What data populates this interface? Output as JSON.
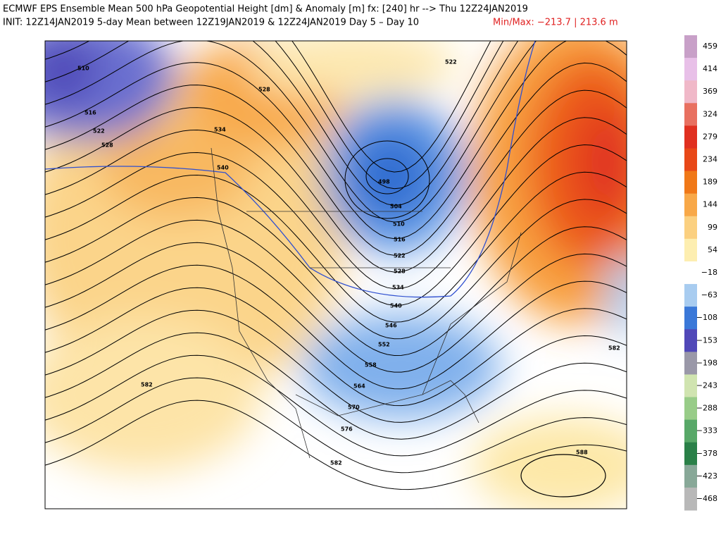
{
  "header": {
    "title": "ECMWF EPS Ensemble Mean 500 hPa Geopotential Height [dm] & Anomaly [m]  fx: [240] hr --> Thu 12Z24JAN2019",
    "init": "INIT: 12Z14JAN2019 5-day Mean between 12Z19JAN2019 & 12Z24JAN2019    Day 5 – Day 10",
    "minmax": "Min/Max: −213.7 | 213.6 m"
  },
  "colorbar": {
    "labels": [
      "459",
      "414",
      "369",
      "324",
      "279",
      "234",
      "189",
      "144",
      "99",
      "54",
      "−18",
      "−63",
      "−108",
      "−153",
      "−198",
      "−243",
      "−288",
      "−333",
      "−378",
      "−423",
      "−468"
    ],
    "colors": [
      "#c8a0c8",
      "#e8c0e8",
      "#f0b8c8",
      "#e87060",
      "#e03020",
      "#e84818",
      "#f07818",
      "#f8a848",
      "#fbd080",
      "#fdeeb0",
      "#ffffff",
      "#a8ccf0",
      "#3a78d8",
      "#5048b8",
      "#9a98a8",
      "#d0e4b0",
      "#98cc88",
      "#58a868",
      "#2a8048",
      "#88a898",
      "#b8b8b8"
    ]
  },
  "contours": {
    "labels": [
      "510",
      "516",
      "522",
      "528",
      "528",
      "534",
      "540",
      "522",
      "498",
      "504",
      "510",
      "516",
      "522",
      "528",
      "534",
      "540",
      "546",
      "552",
      "558",
      "564",
      "570",
      "576",
      "582",
      "582",
      "582",
      "588"
    ]
  }
}
